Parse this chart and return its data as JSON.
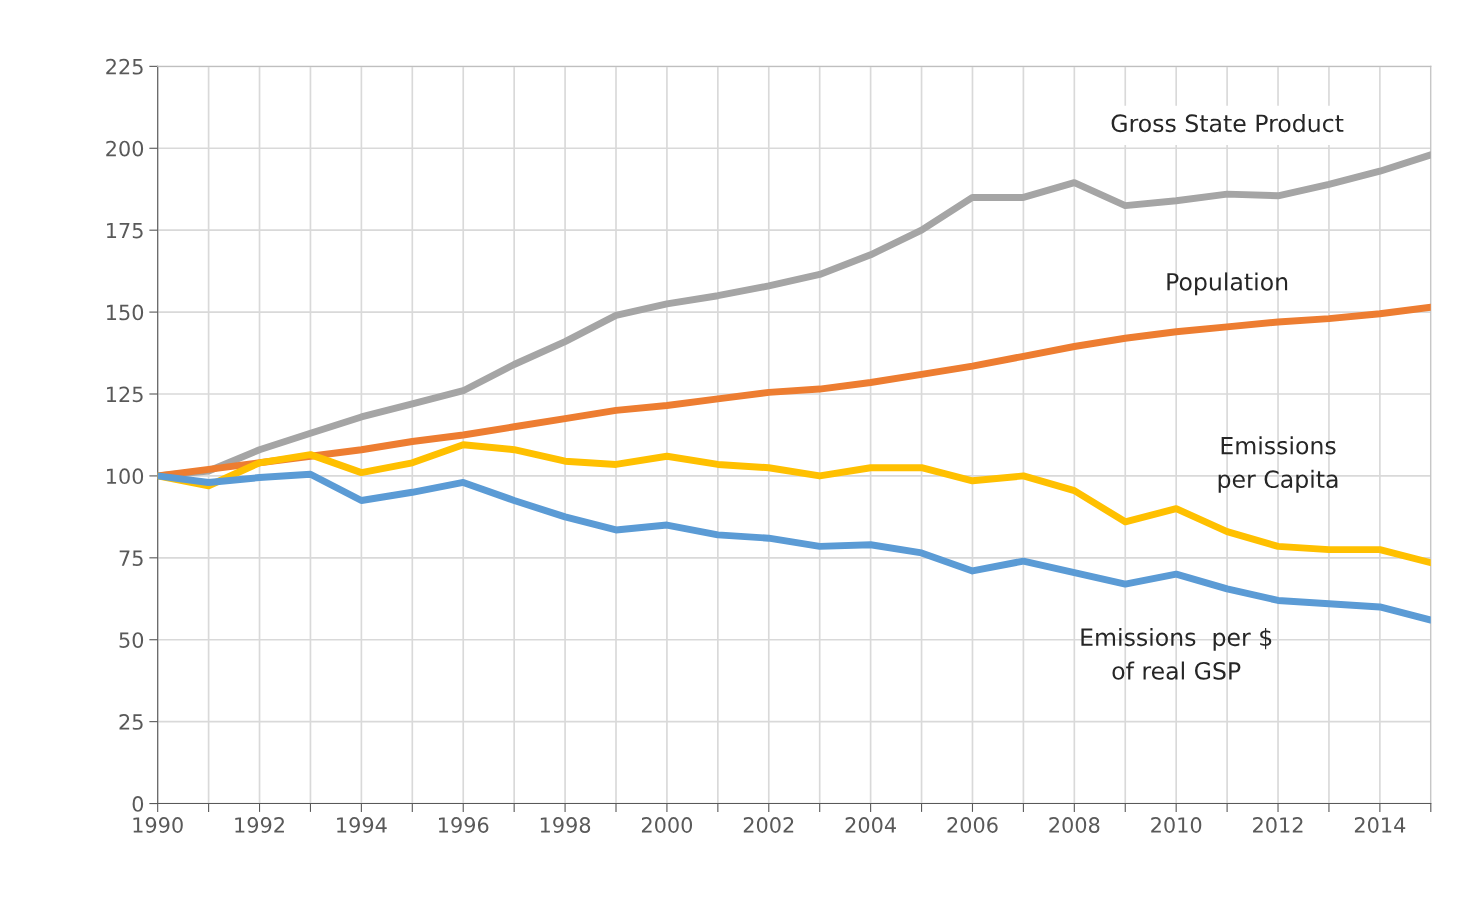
{
  "chart_data": {
    "type": "line",
    "x": [
      1990,
      1991,
      1992,
      1993,
      1994,
      1995,
      1996,
      1997,
      1998,
      1999,
      2000,
      2001,
      2002,
      2003,
      2004,
      2005,
      2006,
      2007,
      2008,
      2009,
      2010,
      2011,
      2012,
      2013,
      2014,
      2015
    ],
    "series": [
      {
        "name": "Gross State Product",
        "color": "#a5a5a5",
        "values": [
          100,
          101.5,
          108,
          113,
          118,
          122,
          126,
          134,
          141,
          149,
          152.5,
          155,
          158,
          161.5,
          167.5,
          175,
          185,
          185,
          189.5,
          182.5,
          184,
          186,
          185.5,
          189,
          193,
          198
        ]
      },
      {
        "name": "Population",
        "color": "#ed7d31",
        "values": [
          100,
          102,
          104,
          106,
          108,
          110.5,
          112.5,
          115,
          117.5,
          120,
          121.5,
          123.5,
          125.5,
          126.5,
          128.5,
          131,
          133.5,
          136.5,
          139.5,
          142,
          144,
          145.5,
          147,
          148,
          149.5,
          151.5
        ]
      },
      {
        "name": "Emissions\nper Capita",
        "color": "#ffc000",
        "values": [
          100,
          97,
          104,
          106.5,
          101,
          104,
          109.5,
          108,
          104.5,
          103.5,
          106,
          103.5,
          102.5,
          100,
          102.5,
          102.5,
          98.5,
          100,
          95.5,
          86,
          90,
          83,
          78.5,
          77.5,
          77.5,
          73.5
        ]
      },
      {
        "name": "Emissions  per $\nof real GSP",
        "color": "#5b9bd5",
        "values": [
          100,
          98,
          99.5,
          100.5,
          92.5,
          95,
          98,
          92.5,
          87.5,
          83.5,
          85,
          82,
          81,
          78.5,
          79,
          76.5,
          71,
          74,
          70.5,
          67,
          70,
          65.5,
          62,
          61,
          60,
          56
        ]
      }
    ],
    "xlim": [
      1990,
      2015
    ],
    "xticks": [
      1990,
      {
        "value": 1991,
        "label": null
      },
      1992,
      {
        "value": 1993,
        "label": null
      },
      1994,
      {
        "value": 1995,
        "label": null
      },
      1996,
      {
        "value": 1997,
        "label": null
      },
      1998,
      {
        "value": 1999,
        "label": null
      },
      2000,
      {
        "value": 2001,
        "label": null
      },
      2002,
      {
        "value": 2003,
        "label": null
      },
      2004,
      {
        "value": 2005,
        "label": null
      },
      2006,
      {
        "value": 2007,
        "label": null
      },
      2008,
      {
        "value": 2009,
        "label": null
      },
      2010,
      {
        "value": 2011,
        "label": null
      },
      2012,
      {
        "value": 2013,
        "label": null
      },
      2014,
      {
        "value": 2015,
        "label": null
      }
    ],
    "ylim": [
      0,
      225
    ],
    "yticks": [
      0,
      25,
      50,
      75,
      100,
      125,
      150,
      175,
      200,
      225
    ],
    "grid": true,
    "legend": false,
    "marker": "none",
    "line_style": "solid"
  }
}
